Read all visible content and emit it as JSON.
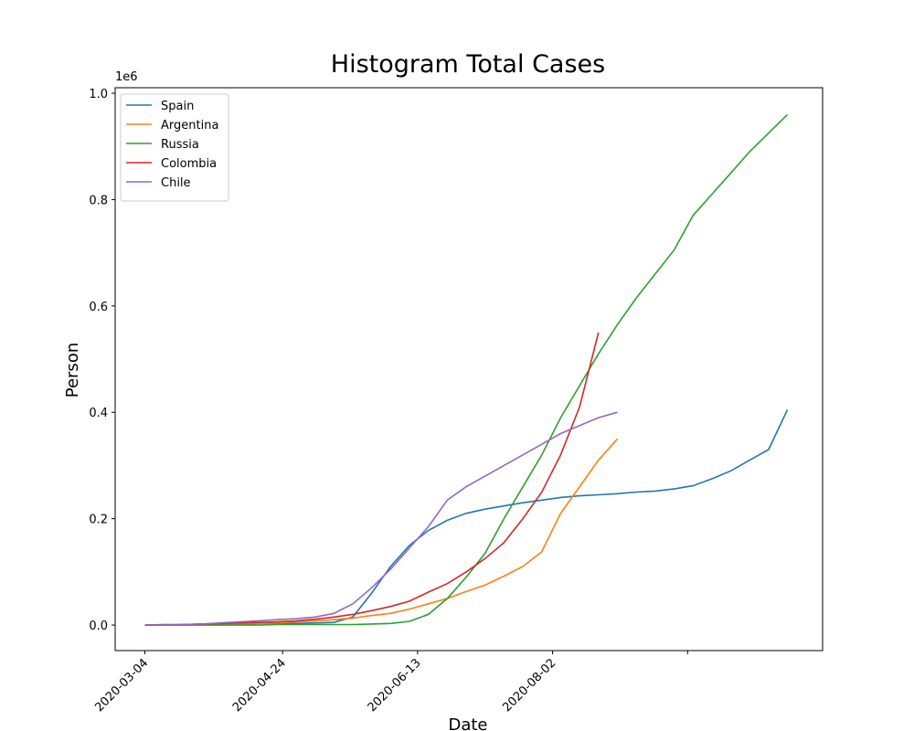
{
  "chart_data": {
    "type": "line",
    "title": "Histogram Total Cases",
    "x_label": "Date",
    "y_label": "Person",
    "y_offset_label": "1e6",
    "title_color": "#148f77",
    "legend_position": "upper left",
    "grid": false,
    "x": [
      "2020-03-04",
      "2020-03-11",
      "2020-03-18",
      "2020-03-25",
      "2020-04-01",
      "2020-04-08",
      "2020-04-15",
      "2020-04-22",
      "2020-04-29",
      "2020-05-06",
      "2020-05-13",
      "2020-05-20",
      "2020-05-27",
      "2020-06-03",
      "2020-06-10",
      "2020-06-17",
      "2020-06-24",
      "2020-07-01",
      "2020-07-08",
      "2020-07-15",
      "2020-07-22",
      "2020-07-29",
      "2020-08-05",
      "2020-08-12",
      "2020-08-19",
      "2020-08-26",
      "2020-09-02",
      "2020-09-09",
      "2020-09-16",
      "2020-09-23",
      "2020-09-30",
      "2020-10-07",
      "2020-10-14",
      "2020-10-21",
      "2020-10-28"
    ],
    "xlim": [
      "2020-02-22",
      "2020-11-10"
    ],
    "xticks": [
      "2020-03-04",
      "2020-04-24",
      "2020-06-13",
      "2020-08-02",
      {
        "value": "2020-09-21",
        "label": null
      }
    ],
    "ylim": [
      -0.048,
      1.0103
    ],
    "yticks": [
      {
        "value": 0,
        "label": "0.0"
      },
      0.2,
      0.4,
      0.6,
      0.8,
      {
        "value": 1,
        "label": "1.0"
      }
    ],
    "series": [
      {
        "name": "Spain",
        "color": "#1f77b4",
        "values": [
          0,
          0.001,
          0.001,
          0.002,
          0.002,
          0.002,
          0.003,
          0.003,
          0.003,
          0.004,
          0.005,
          0.015,
          0.06,
          0.11,
          0.15,
          0.178,
          0.197,
          0.21,
          0.218,
          0.224,
          0.23,
          0.235,
          0.24,
          0.243,
          0.245,
          0.247,
          0.25,
          0.252,
          0.256,
          0.262,
          0.275,
          0.29,
          0.31,
          0.33,
          0.405
        ]
      },
      {
        "name": "Argentina",
        "color": "#ff7f0e",
        "values": [
          0,
          0,
          0,
          0.001,
          0.001,
          0.002,
          0.003,
          0.004,
          0.006,
          0.008,
          0.01,
          0.013,
          0.018,
          0.022,
          0.03,
          0.04,
          0.05,
          0.063,
          0.075,
          0.092,
          0.11,
          0.138,
          0.21,
          0.26,
          0.31,
          0.35,
          null,
          null,
          null,
          null,
          null,
          null,
          null,
          null,
          null
        ]
      },
      {
        "name": "Russia",
        "color": "#2ca02c",
        "values": [
          0,
          0,
          0,
          0,
          0,
          0,
          0,
          0.001,
          0.001,
          0.001,
          0.001,
          0.001,
          0.002,
          0.003,
          0.007,
          0.02,
          0.05,
          0.09,
          0.135,
          0.2,
          0.26,
          0.32,
          0.39,
          0.45,
          0.51,
          0.565,
          0.615,
          0.66,
          0.705,
          0.77,
          0.81,
          0.85,
          0.89,
          0.925,
          0.96
        ]
      },
      {
        "name": "Colombia",
        "color": "#d62728",
        "values": [
          0,
          0,
          0.001,
          0.002,
          0.003,
          0.004,
          0.005,
          0.006,
          0.008,
          0.011,
          0.015,
          0.02,
          0.027,
          0.035,
          0.045,
          0.062,
          0.078,
          0.1,
          0.125,
          0.155,
          0.2,
          0.25,
          0.32,
          0.41,
          0.55,
          null,
          null,
          null,
          null,
          null,
          null,
          null,
          null,
          null,
          null
        ]
      },
      {
        "name": "Chile",
        "color": "#9467bd",
        "values": [
          0,
          0,
          0.001,
          0.002,
          0.004,
          0.006,
          0.008,
          0.01,
          0.012,
          0.015,
          0.022,
          0.04,
          0.07,
          0.105,
          0.145,
          0.185,
          0.235,
          0.26,
          0.28,
          0.3,
          0.32,
          0.34,
          0.36,
          0.375,
          0.39,
          0.4,
          null,
          null,
          null,
          null,
          null,
          null,
          null,
          null,
          null
        ]
      }
    ]
  }
}
